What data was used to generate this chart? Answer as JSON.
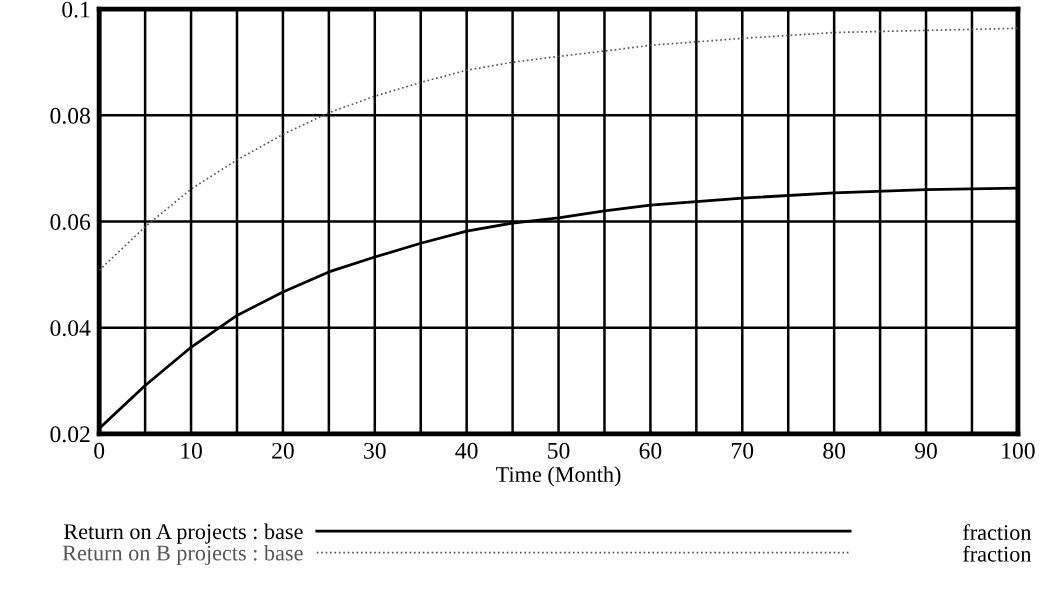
{
  "chart_data": {
    "type": "line",
    "xlabel": "Time (Month)",
    "x": [
      0,
      5,
      10,
      15,
      20,
      25,
      30,
      35,
      40,
      45,
      50,
      55,
      60,
      70,
      80,
      90,
      100
    ],
    "series": [
      {
        "name": "Return on A projects : base",
        "color": "#000000",
        "line_style": "solid",
        "values": [
          0.021,
          0.0291,
          0.0363,
          0.0423,
          0.0467,
          0.0505,
          0.0533,
          0.0559,
          0.0582,
          0.0597,
          0.0607,
          0.062,
          0.0631,
          0.0644,
          0.0654,
          0.066,
          0.0663
        ]
      },
      {
        "name": "Return on B projects : base",
        "color": "#555555",
        "line_style": "dotted",
        "values": [
          0.0508,
          0.059,
          0.0661,
          0.0716,
          0.0764,
          0.0805,
          0.0836,
          0.0862,
          0.0885,
          0.09,
          0.0911,
          0.0921,
          0.0932,
          0.0945,
          0.0956,
          0.096,
          0.0964
        ]
      }
    ],
    "xlim": [
      0,
      100
    ],
    "xticks": [
      0,
      {
        "value": 5,
        "label": null
      },
      10,
      {
        "value": 15,
        "label": null
      },
      20,
      {
        "value": 25,
        "label": null
      },
      30,
      {
        "value": 35,
        "label": null
      },
      40,
      {
        "value": 45,
        "label": null
      },
      50,
      {
        "value": 55,
        "label": null
      },
      60,
      {
        "value": 65,
        "label": null
      },
      70,
      {
        "value": 75,
        "label": null
      },
      80,
      {
        "value": 85,
        "label": null
      },
      90,
      {
        "value": 95,
        "label": null
      },
      100
    ],
    "ylim": [
      0.02,
      0.1
    ],
    "yticks": [
      0.02,
      0.04,
      0.06,
      0.08,
      0.1
    ],
    "grid": true,
    "legend": "bottom",
    "marker": "none",
    "annotations": [
      "fraction",
      "fraction"
    ]
  }
}
